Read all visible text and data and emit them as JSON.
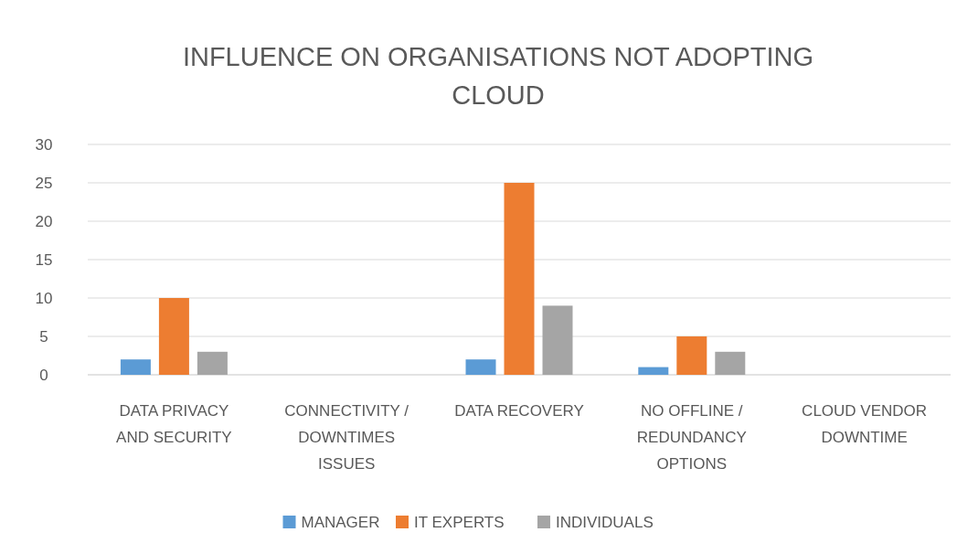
{
  "chart_data": {
    "type": "bar",
    "title": "INFLUENCE ON ORGANISATIONS NOT ADOPTING CLOUD",
    "categories": [
      "DATA PRIVACY AND SECURITY",
      "CONNECTIVITY / DOWNTIMES ISSUES",
      "DATA RECOVERY",
      "NO OFFLINE / REDUNDANCY OPTIONS",
      "CLOUD VENDOR DOWNTIME"
    ],
    "series": [
      {
        "name": "MANAGER",
        "color": "#5b9bd5",
        "values": [
          2,
          0,
          2,
          1,
          0
        ]
      },
      {
        "name": "IT EXPERTS",
        "color": "#ed7d31",
        "values": [
          10,
          0,
          25,
          5,
          0
        ]
      },
      {
        "name": "INDIVIDUALS",
        "color": "#a5a5a5",
        "values": [
          3,
          0,
          9,
          3,
          0
        ]
      }
    ],
    "ylim": [
      0,
      30
    ],
    "yticks": [
      0,
      5,
      10,
      15,
      20,
      25,
      30
    ],
    "grid": "y",
    "legend": "bottom"
  }
}
